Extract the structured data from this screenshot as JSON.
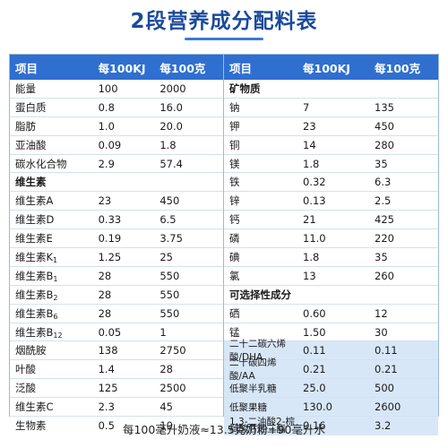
{
  "title": "2段营养成分配料表",
  "headers": {
    "left": [
      "项目",
      "每100KJ",
      "每100克"
    ],
    "right": [
      "项目",
      "每100KJ",
      "每100克"
    ]
  },
  "left_rows": [
    {
      "name": "能量",
      "per_kj": "100",
      "per_100g": "2000"
    },
    {
      "name": "蛋白质",
      "per_kj": "0.8",
      "per_100g": "16.0"
    },
    {
      "name": "脂肪",
      "per_kj": "1.0",
      "per_100g": "20.0"
    },
    {
      "name": "亚油酸",
      "per_kj": "0.09",
      "per_100g": "1.8"
    },
    {
      "name": "碳水化合物",
      "per_kj": "2.9",
      "per_100g": "57.4"
    },
    {
      "name": "维生素",
      "per_kj": "",
      "per_100g": "",
      "section": true
    },
    {
      "name": "维生素A",
      "per_kj": "23",
      "per_100g": "450"
    },
    {
      "name": "维生素D",
      "per_kj": "0.33",
      "per_100g": "6.5"
    },
    {
      "name": "维生素E",
      "per_kj": "0.19",
      "per_100g": "3.75"
    },
    {
      "name": "维生素K",
      "sub": "1",
      "per_kj": "1.25",
      "per_100g": "25"
    },
    {
      "name": "维生素B",
      "sub": "1",
      "per_kj": "28",
      "per_100g": "550"
    },
    {
      "name": "维生素B",
      "sub": "2",
      "per_kj": "28",
      "per_100g": "550"
    },
    {
      "name": "维生素B",
      "sub": "6",
      "per_kj": "28",
      "per_100g": "550"
    },
    {
      "name": "维生素B",
      "sub": "12",
      "per_kj": "0.05",
      "per_100g": "1"
    },
    {
      "name": "烟酰胺",
      "per_kj": "138",
      "per_100g": "2750"
    },
    {
      "name": "叶酸",
      "per_kj": "1.4",
      "per_100g": "28"
    },
    {
      "name": "泛酸",
      "per_kj": "125",
      "per_100g": "2500"
    },
    {
      "name": "维生素C",
      "per_kj": "2.3",
      "per_100g": "45"
    },
    {
      "name": "生物素",
      "per_kj": "0.5",
      "per_100g": "10"
    }
  ],
  "right_rows": [
    {
      "name": "矿物质",
      "per_kj": "",
      "per_100g": "",
      "section": true
    },
    {
      "name": "钠",
      "per_kj": "7",
      "per_100g": "135"
    },
    {
      "name": "钾",
      "per_kj": "23",
      "per_100g": "450"
    },
    {
      "name": "铜",
      "per_kj": "14",
      "per_100g": "280"
    },
    {
      "name": "镁",
      "per_kj": "1.8",
      "per_100g": "35"
    },
    {
      "name": "铁",
      "per_kj": "0.32",
      "per_100g": "6.3"
    },
    {
      "name": "锌",
      "per_kj": "0.13",
      "per_100g": "2.5"
    },
    {
      "name": "钙",
      "per_kj": "21",
      "per_100g": "425"
    },
    {
      "name": "磷",
      "per_kj": "11.0",
      "per_100g": "220"
    },
    {
      "name": "碘",
      "per_kj": "1.8",
      "per_100g": "35"
    },
    {
      "name": "氯",
      "per_kj": "13",
      "per_100g": "260"
    },
    {
      "name": "可选择性成分",
      "per_kj": "",
      "per_100g": "",
      "section": true
    },
    {
      "name": "硒",
      "per_kj": "0.60",
      "per_100g": "12"
    },
    {
      "name": "锰",
      "per_kj": "1.50",
      "per_100g": "30"
    },
    {
      "name": "二十二碳六烯酸/DHA",
      "per_kj": "0.11",
      "per_100g": "0.11",
      "shaded": true
    },
    {
      "name": "二十碳四烯酸/AA",
      "per_kj": "0.21",
      "per_100g": "0.21",
      "shaded": true
    },
    {
      "name": "低聚半乳糖",
      "per_kj": "25.0",
      "per_100g": "500",
      "shaded": true
    },
    {
      "name": "低聚果糖",
      "per_kj": "130.0",
      "per_100g": "2600",
      "shaded": true
    },
    {
      "name": "1,3-二油酸2-棕榈酸甘油三酯",
      "per_kj": "0.16",
      "per_100g": "3.2",
      "shaded": true
    }
  ],
  "footer": "每100毫升奶液≈13.5克奶粉+90毫升水",
  "colors": {
    "header_bg": "#2f6fd0",
    "title": "#1b4a9c",
    "shaded_row": "#d8e7f8"
  }
}
